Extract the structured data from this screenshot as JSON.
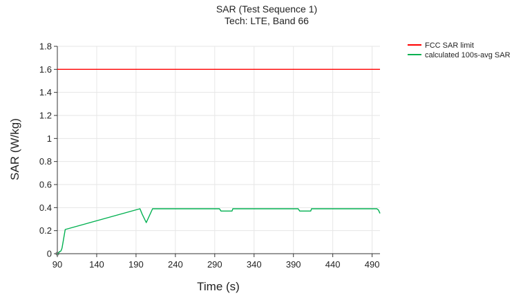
{
  "chart_data": {
    "type": "line",
    "title": "SAR (Test Sequence 1)",
    "subtitle": "Tech: LTE, Band 66",
    "xlabel": "Time (s)",
    "ylabel": "SAR (W/kg)",
    "xlim": [
      90,
      500
    ],
    "ylim": [
      0,
      1.8
    ],
    "x_ticks": [
      90,
      140,
      190,
      240,
      290,
      340,
      390,
      440,
      490
    ],
    "y_ticks": [
      0,
      0.2,
      0.4,
      0.6,
      0.8,
      1,
      1.2,
      1.4,
      1.6,
      1.8
    ],
    "x_tick_labels": [
      "90",
      "140",
      "190",
      "240",
      "290",
      "340",
      "390",
      "440",
      "490"
    ],
    "y_tick_labels": [
      "0",
      "0.2",
      "0.4",
      "0.6",
      "0.8",
      "1",
      "1.2",
      "1.4",
      "1.6",
      "1.8"
    ],
    "grid": true,
    "legend_position": "top-right",
    "series": [
      {
        "name": "FCC SAR limit",
        "color": "#ff0000",
        "x": [
          90,
          500
        ],
        "y": [
          1.6,
          1.6
        ]
      },
      {
        "name": "calculated 100s-avg SAR",
        "color": "#00b050",
        "marker_first_point": true,
        "x": [
          90,
          91,
          92,
          93,
          94,
          95,
          96,
          97,
          100,
          195,
          198,
          203,
          209,
          211,
          296,
          298,
          299,
          312,
          313,
          396,
          398,
          399,
          412,
          413,
          496,
          498,
          500
        ],
        "y": [
          0.0,
          0.0,
          0.01,
          0.02,
          0.02,
          0.03,
          0.05,
          0.09,
          0.21,
          0.39,
          0.34,
          0.27,
          0.36,
          0.39,
          0.39,
          0.37,
          0.37,
          0.37,
          0.39,
          0.39,
          0.37,
          0.37,
          0.37,
          0.39,
          0.39,
          0.38,
          0.35
        ]
      }
    ]
  }
}
